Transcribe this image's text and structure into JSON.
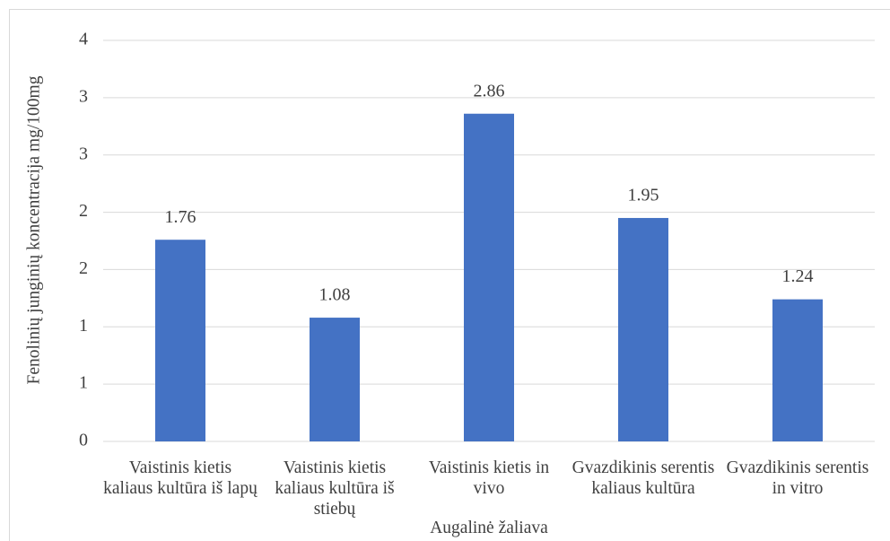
{
  "chart_data": {
    "type": "bar",
    "categories": [
      "Vaistinis kietis kaliaus kultūra iš lapų",
      "Vaistinis kietis kaliaus kultūra iš stiebų",
      "Vaistinis kietis in vivo",
      "Gvazdikinis serentis kaliaus kultūra",
      "Gvazdikinis serentis in vitro"
    ],
    "values": [
      1.76,
      1.08,
      2.86,
      1.95,
      1.24
    ],
    "color": "#4472c4",
    "ylabel": "Fenolinių junginių koncentracija mg/100mg",
    "xlabel": "Augalinė žaliava",
    "ylim": [
      0,
      3.5
    ],
    "yticks": [
      0,
      {
        "value": 0.5,
        "label": "1"
      },
      1,
      {
        "value": 1.5,
        "label": "2"
      },
      2,
      {
        "value": 2.5,
        "label": "3"
      },
      3,
      {
        "value": 3.5,
        "label": "4"
      }
    ],
    "grid": true
  }
}
